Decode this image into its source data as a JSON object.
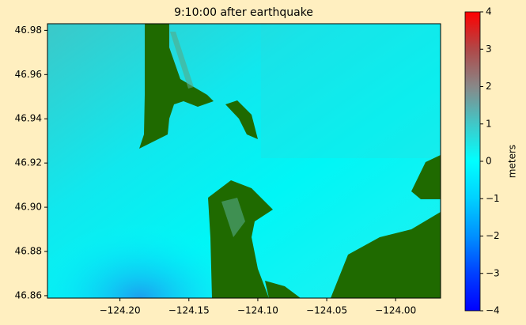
{
  "chart_data": {
    "type": "heatmap",
    "title": "9:10:00 after earthquake",
    "xlim": [
      -124.2526,
      -123.9674
    ],
    "xticks": [
      {
        "value": -124.2,
        "label": "−124.20"
      },
      {
        "value": -124.15,
        "label": "−124.15"
      },
      {
        "value": -124.1,
        "label": "−124.10"
      },
      {
        "value": -124.05,
        "label": "−124.05"
      },
      {
        "value": -124.0,
        "label": "−124.00"
      }
    ],
    "ylim": [
      46.8589,
      46.983
    ],
    "yticks": [
      46.86,
      46.88,
      {
        "value": 46.9,
        "label": "46.90"
      },
      46.92,
      46.94,
      46.96,
      46.98
    ],
    "colorbar": {
      "label": "meters",
      "lim": [
        -4,
        4
      ],
      "ticks": [
        4,
        3,
        2,
        1,
        0,
        {
          "value": -1,
          "label": "−1"
        },
        {
          "value": -2,
          "label": "−2"
        },
        {
          "value": -3,
          "label": "−3"
        },
        {
          "value": -4,
          "label": "−4"
        }
      ],
      "colors": [
        "#0000ff",
        "#0040ff",
        "#0090ff",
        "#00d0ff",
        "#00ffff",
        "#40c8c8",
        "#888888",
        "#b04848",
        "#ff0000"
      ]
    }
  }
}
